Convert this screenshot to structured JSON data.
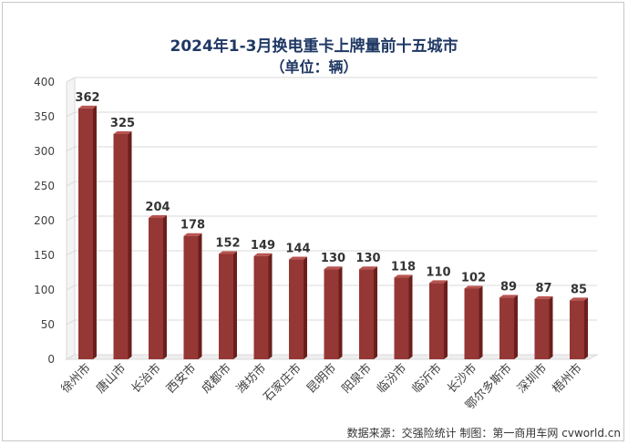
{
  "title": "2024年1-3月换电重卡上牌量前十五城市",
  "subtitle": "（单位：辆）",
  "source_note": "数据来源：交强险统计    制图：第一商用车网 cvworld.cn",
  "colors": {
    "bar_front": "#953735",
    "bar_side": "#6b1f1d",
    "bar_top": "#b85450",
    "grid": "#d9d9d9",
    "axis_text": "#404040"
  },
  "chart_data": {
    "type": "bar",
    "categories": [
      "徐州市",
      "唐山市",
      "长治市",
      "西安市",
      "成都市",
      "潍坊市",
      "石家庄市",
      "昆明市",
      "阳泉市",
      "临汾市",
      "临沂市",
      "长沙市",
      "鄂尔多斯市",
      "深圳市",
      "梧州市"
    ],
    "values": [
      362,
      325,
      204,
      178,
      152,
      149,
      144,
      130,
      130,
      118,
      110,
      102,
      89,
      87,
      85
    ],
    "title": "2024年1-3月换电重卡上牌量前十五城市",
    "xlabel": "",
    "ylabel": "",
    "ylim": [
      0,
      400
    ],
    "yticks": [
      0,
      50,
      100,
      150,
      200,
      250,
      300,
      350,
      400
    ],
    "grid": true,
    "legend": "none"
  }
}
